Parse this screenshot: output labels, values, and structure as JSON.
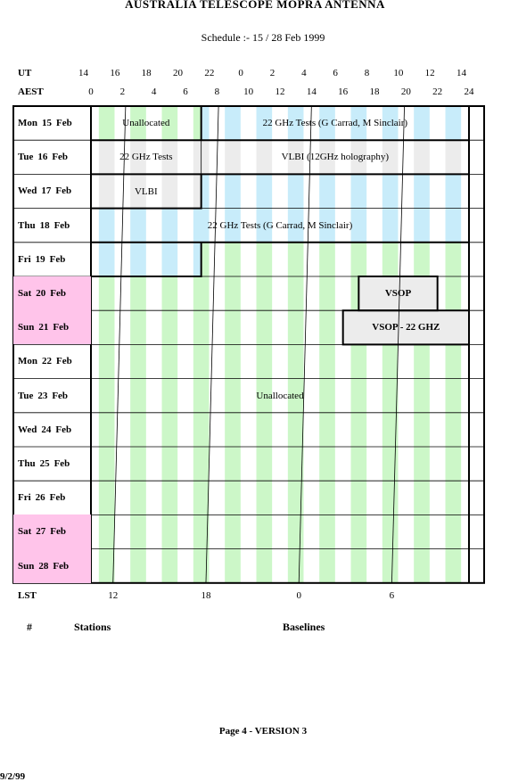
{
  "header": {
    "title": "AUSTRALIA TELESCOPE MOPRA ANTENNA",
    "subtitle": "Schedule :- 15 / 28 Feb 1999"
  },
  "axes": {
    "ut_label": "UT",
    "aest_label": "AEST",
    "lst_label": "LST",
    "ut_ticks": [
      "14",
      "16",
      "18",
      "20",
      "22",
      "0",
      "2",
      "4",
      "6",
      "8",
      "10",
      "12",
      "14"
    ],
    "aest_ticks": [
      "0",
      "2",
      "4",
      "6",
      "8",
      "10",
      "12",
      "14",
      "16",
      "18",
      "20",
      "22",
      "24"
    ],
    "lst_ticks": [
      "12",
      "18",
      "0",
      "6"
    ]
  },
  "days": [
    {
      "dow": "Mon",
      "date": "15",
      "month": "Feb",
      "weekend": false
    },
    {
      "dow": "Tue",
      "date": "16",
      "month": "Feb",
      "weekend": false
    },
    {
      "dow": "Wed",
      "date": "17",
      "month": "Feb",
      "weekend": false
    },
    {
      "dow": "Thu",
      "date": "18",
      "month": "Feb",
      "weekend": false
    },
    {
      "dow": "Fri",
      "date": "19",
      "month": "Feb",
      "weekend": false
    },
    {
      "dow": "Sat",
      "date": "20",
      "month": "Feb",
      "weekend": true
    },
    {
      "dow": "Sun",
      "date": "21",
      "month": "Feb",
      "weekend": true
    },
    {
      "dow": "Mon",
      "date": "22",
      "month": "Feb",
      "weekend": false
    },
    {
      "dow": "Tue",
      "date": "23",
      "month": "Feb",
      "weekend": false
    },
    {
      "dow": "Wed",
      "date": "24",
      "month": "Feb",
      "weekend": false
    },
    {
      "dow": "Thu",
      "date": "25",
      "month": "Feb",
      "weekend": false
    },
    {
      "dow": "Fri",
      "date": "26",
      "month": "Feb",
      "weekend": false
    },
    {
      "dow": "Sat",
      "date": "27",
      "month": "Feb",
      "weekend": true
    },
    {
      "dow": "Sun",
      "date": "28",
      "month": "Feb",
      "weekend": true
    }
  ],
  "blocks": [
    {
      "label": "Unallocated",
      "day": 0,
      "start_aest": 0,
      "end_aest": 7
    },
    {
      "label": "22 GHz Tests (G Carrad, M Sinclair)",
      "day": 0,
      "start_aest": 7,
      "end_aest": 24
    },
    {
      "label": "22 GHz Tests",
      "day": 1,
      "start_aest": 0,
      "end_aest": 7
    },
    {
      "label": "VLBI (12GHz holography)",
      "day": 1,
      "start_aest": 7,
      "end_aest": 24
    },
    {
      "label": "VLBI",
      "day": 2,
      "start_aest": 0,
      "end_aest": 7
    },
    {
      "label": "22 GHz Tests (G Carrad, M Sinclair)",
      "day": 3,
      "start_aest": 0,
      "end_aest": 24
    },
    {
      "label": "VSOP",
      "day": 5,
      "start_aest": 17,
      "end_aest": 22
    },
    {
      "label": "VSOP - 22 GHZ",
      "day": 6,
      "start_aest": 16,
      "end_aest": 24
    },
    {
      "label": "Unallocated",
      "day": 8,
      "start_aest": 0,
      "end_aest": 24
    }
  ],
  "colors": {
    "pink": "#ffc4ea",
    "green": "#ccf7c8",
    "blue": "#c8ecfa",
    "gray": "#ececec"
  },
  "legend": {
    "number": "#",
    "stations": "Stations",
    "baselines": "Baselines"
  },
  "footer": {
    "page": "Page 4 - VERSION 3",
    "date": "9/2/99"
  }
}
